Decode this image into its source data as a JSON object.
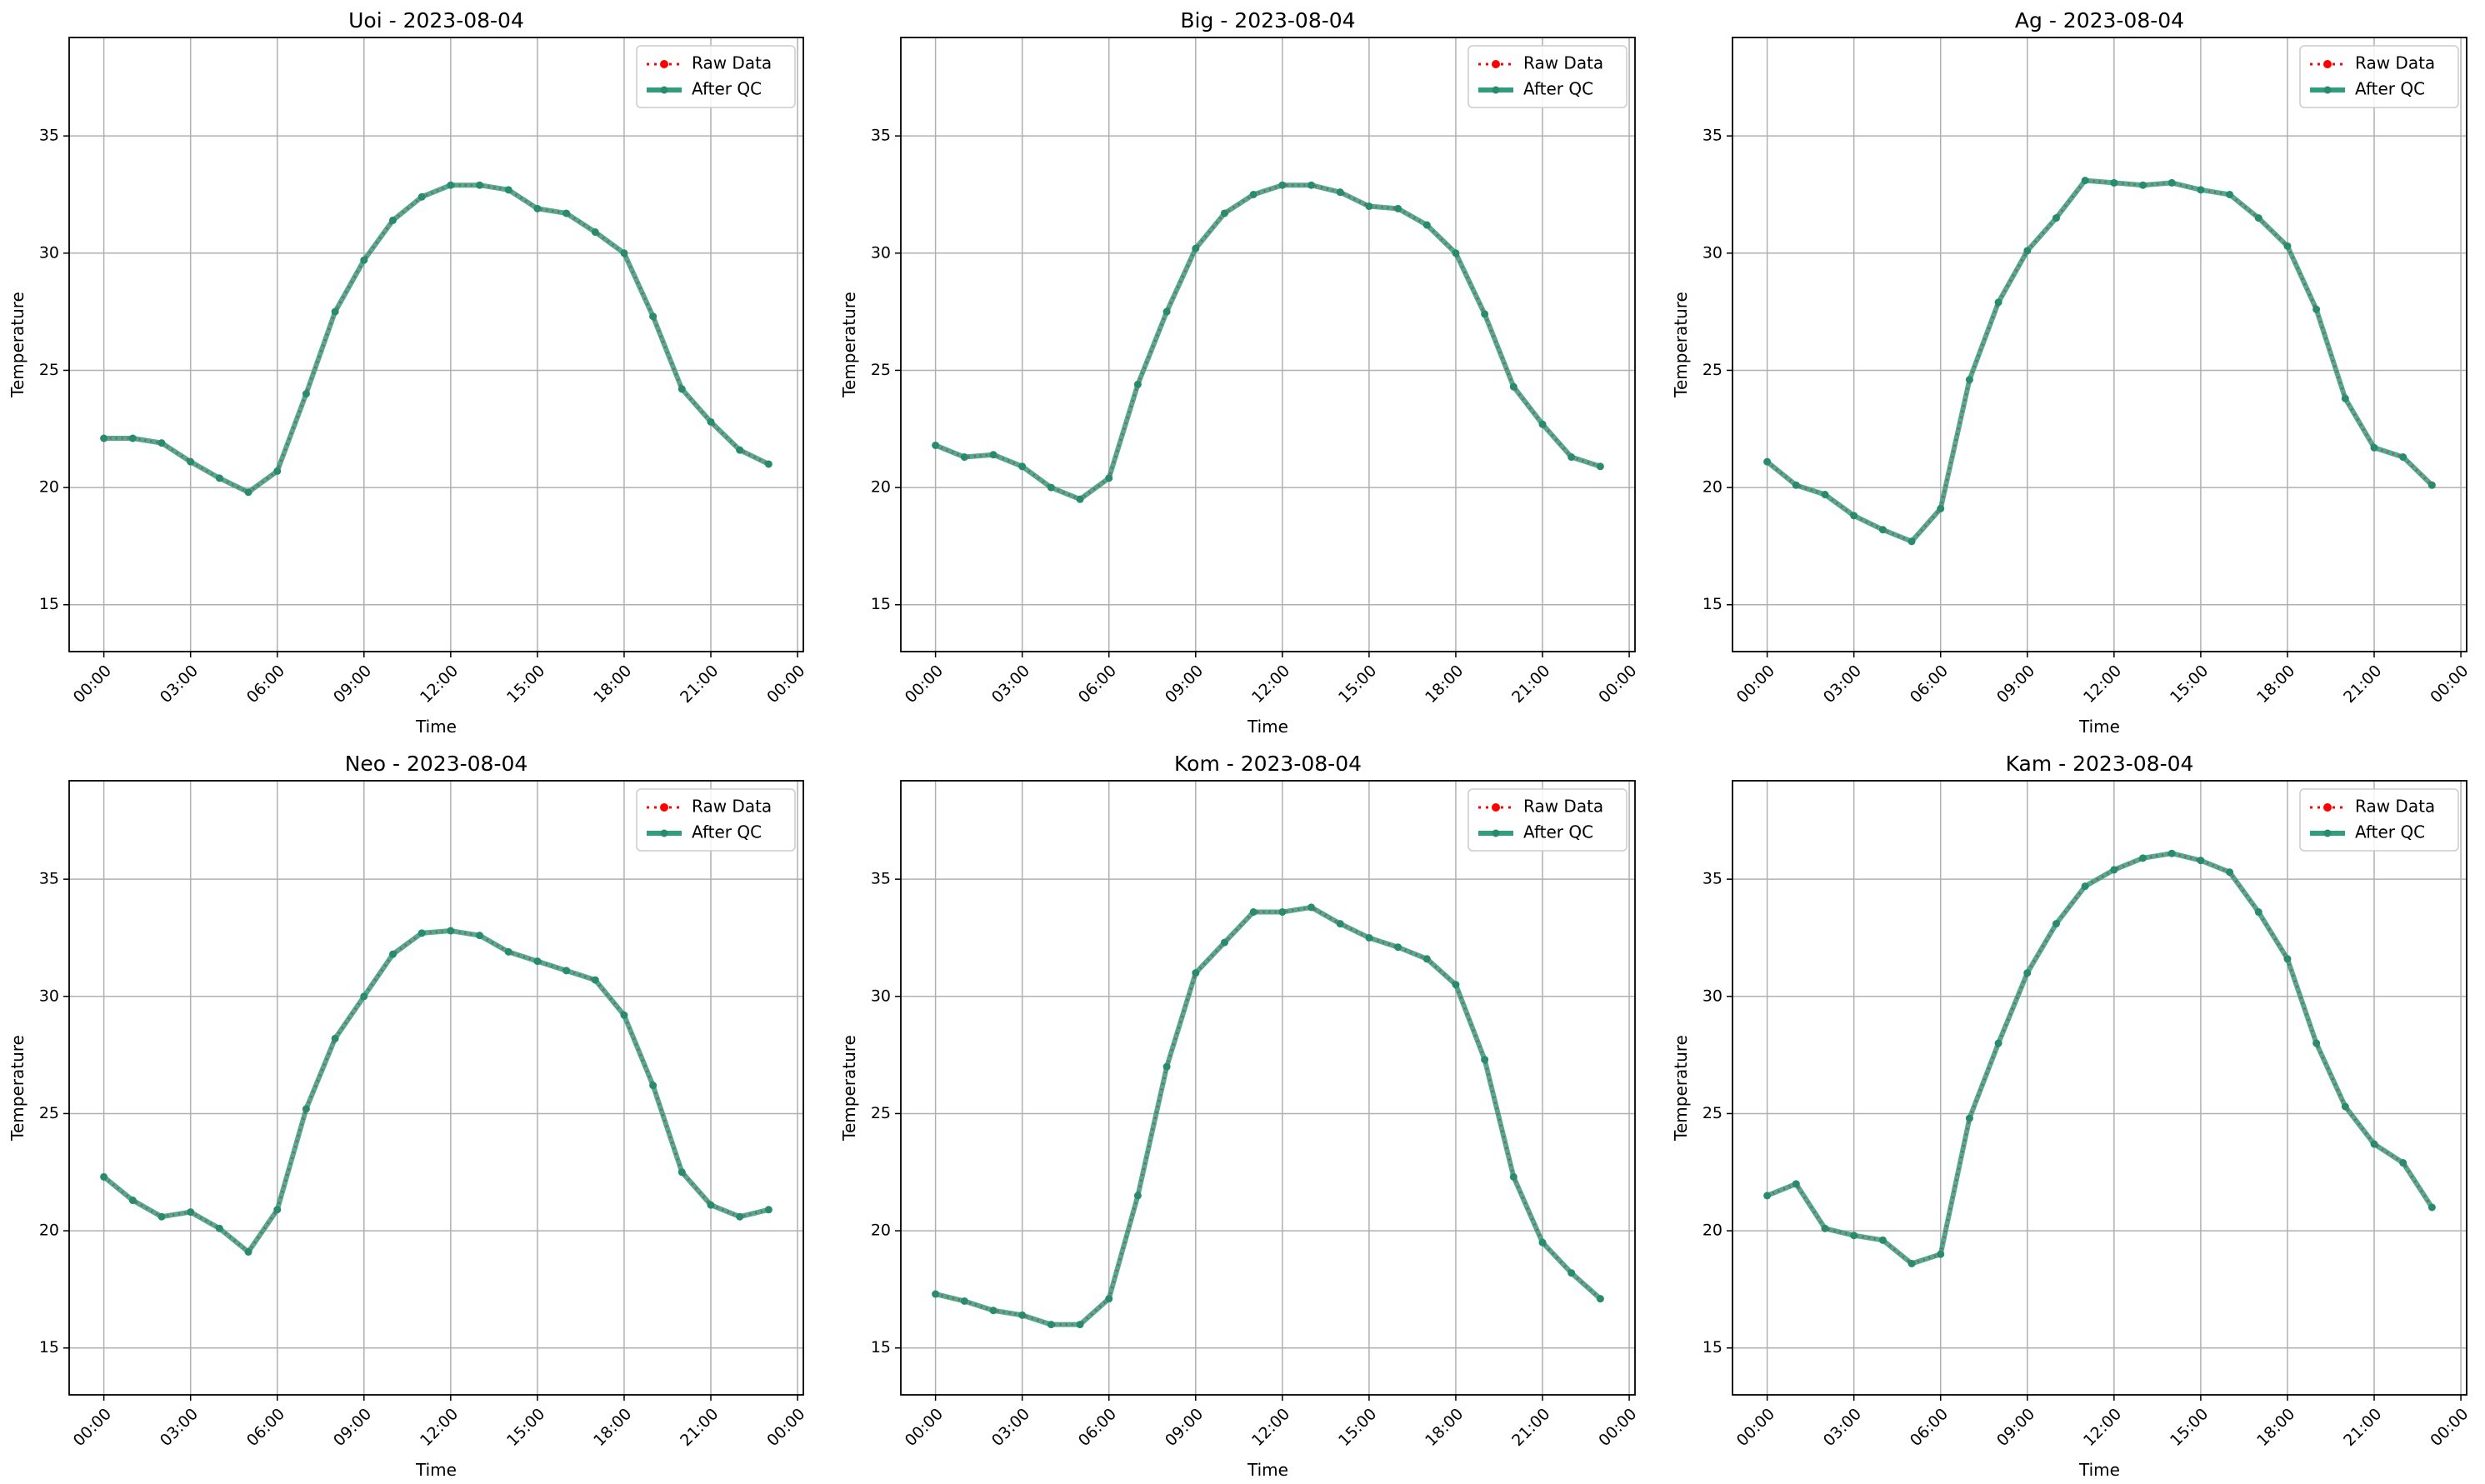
{
  "x_tick_labels": [
    "00:00",
    "03:00",
    "06:00",
    "09:00",
    "12:00",
    "15:00",
    "18:00",
    "21:00",
    "00:00"
  ],
  "y_ticks": [
    15,
    20,
    25,
    30,
    35
  ],
  "ylim": [
    13,
    39.2
  ],
  "xlabel": "Time",
  "ylabel": "Temperature",
  "legend": {
    "raw_label": "Raw Data",
    "qc_label": "After QC",
    "position": "top-right"
  },
  "colors": {
    "raw": "#ff0000",
    "qc": "#2e9e7e",
    "qc_marker": "#2a8a6e",
    "grid": "#b0b0b0"
  },
  "grid": true,
  "chart_data": [
    {
      "type": "line",
      "title": "Uoi - 2023-08-04",
      "x": [
        "00:00",
        "01:00",
        "02:00",
        "03:00",
        "04:00",
        "05:00",
        "06:00",
        "07:00",
        "08:00",
        "09:00",
        "10:00",
        "11:00",
        "12:00",
        "13:00",
        "14:00",
        "15:00",
        "16:00",
        "17:00",
        "18:00",
        "19:00",
        "20:00",
        "21:00",
        "22:00",
        "23:00"
      ],
      "series": [
        {
          "name": "Raw Data",
          "values": [
            22.1,
            22.1,
            21.9,
            21.1,
            20.4,
            19.8,
            20.7,
            24.0,
            27.5,
            29.7,
            31.4,
            32.4,
            32.9,
            32.9,
            32.7,
            31.9,
            31.7,
            30.9,
            30.0,
            27.3,
            24.2,
            22.8,
            21.6,
            21.0
          ]
        },
        {
          "name": "After QC",
          "values": [
            22.1,
            22.1,
            21.9,
            21.1,
            20.4,
            19.8,
            20.7,
            24.0,
            27.5,
            29.7,
            31.4,
            32.4,
            32.9,
            32.9,
            32.7,
            31.9,
            31.7,
            30.9,
            30.0,
            27.3,
            24.2,
            22.8,
            21.6,
            21.0
          ]
        }
      ]
    },
    {
      "type": "line",
      "title": "Big - 2023-08-04",
      "x": [
        "00:00",
        "01:00",
        "02:00",
        "03:00",
        "04:00",
        "05:00",
        "06:00",
        "07:00",
        "08:00",
        "09:00",
        "10:00",
        "11:00",
        "12:00",
        "13:00",
        "14:00",
        "15:00",
        "16:00",
        "17:00",
        "18:00",
        "19:00",
        "20:00",
        "21:00",
        "22:00",
        "23:00"
      ],
      "series": [
        {
          "name": "Raw Data",
          "values": [
            21.8,
            21.3,
            21.4,
            20.9,
            20.0,
            19.5,
            20.4,
            24.4,
            27.5,
            30.2,
            31.7,
            32.5,
            32.9,
            32.9,
            32.6,
            32.0,
            31.9,
            31.2,
            30.0,
            27.4,
            24.3,
            22.7,
            21.3,
            20.9
          ]
        },
        {
          "name": "After QC",
          "values": [
            21.8,
            21.3,
            21.4,
            20.9,
            20.0,
            19.5,
            20.4,
            24.4,
            27.5,
            30.2,
            31.7,
            32.5,
            32.9,
            32.9,
            32.6,
            32.0,
            31.9,
            31.2,
            30.0,
            27.4,
            24.3,
            22.7,
            21.3,
            20.9
          ]
        }
      ]
    },
    {
      "type": "line",
      "title": "Ag - 2023-08-04",
      "x": [
        "00:00",
        "01:00",
        "02:00",
        "03:00",
        "04:00",
        "05:00",
        "06:00",
        "07:00",
        "08:00",
        "09:00",
        "10:00",
        "11:00",
        "12:00",
        "13:00",
        "14:00",
        "15:00",
        "16:00",
        "17:00",
        "18:00",
        "19:00",
        "20:00",
        "21:00",
        "22:00",
        "23:00"
      ],
      "series": [
        {
          "name": "Raw Data",
          "values": [
            21.1,
            20.1,
            19.7,
            18.8,
            18.2,
            17.7,
            19.1,
            24.6,
            27.9,
            30.1,
            31.5,
            33.1,
            33.0,
            32.9,
            33.0,
            32.7,
            32.5,
            31.5,
            30.3,
            27.6,
            23.8,
            21.7,
            21.3,
            20.1
          ]
        },
        {
          "name": "After QC",
          "values": [
            21.1,
            20.1,
            19.7,
            18.8,
            18.2,
            17.7,
            19.1,
            24.6,
            27.9,
            30.1,
            31.5,
            33.1,
            33.0,
            32.9,
            33.0,
            32.7,
            32.5,
            31.5,
            30.3,
            27.6,
            23.8,
            21.7,
            21.3,
            20.1
          ]
        }
      ]
    },
    {
      "type": "line",
      "title": "Neo - 2023-08-04",
      "x": [
        "00:00",
        "01:00",
        "02:00",
        "03:00",
        "04:00",
        "05:00",
        "06:00",
        "07:00",
        "08:00",
        "09:00",
        "10:00",
        "11:00",
        "12:00",
        "13:00",
        "14:00",
        "15:00",
        "16:00",
        "17:00",
        "18:00",
        "19:00",
        "20:00",
        "21:00",
        "22:00",
        "23:00"
      ],
      "series": [
        {
          "name": "Raw Data",
          "values": [
            22.3,
            21.3,
            20.6,
            20.8,
            20.1,
            19.1,
            20.9,
            25.2,
            28.2,
            30.0,
            31.8,
            32.7,
            32.8,
            32.6,
            31.9,
            31.5,
            31.1,
            30.7,
            29.2,
            26.2,
            22.5,
            21.1,
            20.6,
            20.9
          ]
        },
        {
          "name": "After QC",
          "values": [
            22.3,
            21.3,
            20.6,
            20.8,
            20.1,
            19.1,
            20.9,
            25.2,
            28.2,
            30.0,
            31.8,
            32.7,
            32.8,
            32.6,
            31.9,
            31.5,
            31.1,
            30.7,
            29.2,
            26.2,
            22.5,
            21.1,
            20.6,
            20.9
          ]
        }
      ]
    },
    {
      "type": "line",
      "title": "Kom - 2023-08-04",
      "x": [
        "00:00",
        "01:00",
        "02:00",
        "03:00",
        "04:00",
        "05:00",
        "06:00",
        "07:00",
        "08:00",
        "09:00",
        "10:00",
        "11:00",
        "12:00",
        "13:00",
        "14:00",
        "15:00",
        "16:00",
        "17:00",
        "18:00",
        "19:00",
        "20:00",
        "21:00",
        "22:00",
        "23:00"
      ],
      "series": [
        {
          "name": "Raw Data",
          "values": [
            17.3,
            17.0,
            16.6,
            16.4,
            16.0,
            16.0,
            17.1,
            21.5,
            27.0,
            31.0,
            32.3,
            33.6,
            33.6,
            33.8,
            33.1,
            32.5,
            32.1,
            31.6,
            30.5,
            27.3,
            22.3,
            19.5,
            18.2,
            17.1
          ]
        },
        {
          "name": "After QC",
          "values": [
            17.3,
            17.0,
            16.6,
            16.4,
            16.0,
            16.0,
            17.1,
            21.5,
            27.0,
            31.0,
            32.3,
            33.6,
            33.6,
            33.8,
            33.1,
            32.5,
            32.1,
            31.6,
            30.5,
            27.3,
            22.3,
            19.5,
            18.2,
            17.1
          ]
        }
      ]
    },
    {
      "type": "line",
      "title": "Kam - 2023-08-04",
      "x": [
        "00:00",
        "01:00",
        "02:00",
        "03:00",
        "04:00",
        "05:00",
        "06:00",
        "07:00",
        "08:00",
        "09:00",
        "10:00",
        "11:00",
        "12:00",
        "13:00",
        "14:00",
        "15:00",
        "16:00",
        "17:00",
        "18:00",
        "19:00",
        "20:00",
        "21:00",
        "22:00",
        "23:00"
      ],
      "series": [
        {
          "name": "Raw Data",
          "values": [
            21.5,
            22.0,
            20.1,
            19.8,
            19.6,
            18.6,
            19.0,
            24.8,
            28.0,
            31.0,
            33.1,
            34.7,
            35.4,
            35.9,
            36.1,
            35.8,
            35.3,
            33.6,
            31.6,
            28.0,
            25.3,
            23.7,
            22.9,
            21.0
          ]
        },
        {
          "name": "After QC",
          "values": [
            21.5,
            22.0,
            20.1,
            19.8,
            19.6,
            18.6,
            19.0,
            24.8,
            28.0,
            31.0,
            33.1,
            34.7,
            35.4,
            35.9,
            36.1,
            35.8,
            35.3,
            33.6,
            31.6,
            28.0,
            25.3,
            23.7,
            22.9,
            21.0
          ]
        }
      ]
    }
  ]
}
